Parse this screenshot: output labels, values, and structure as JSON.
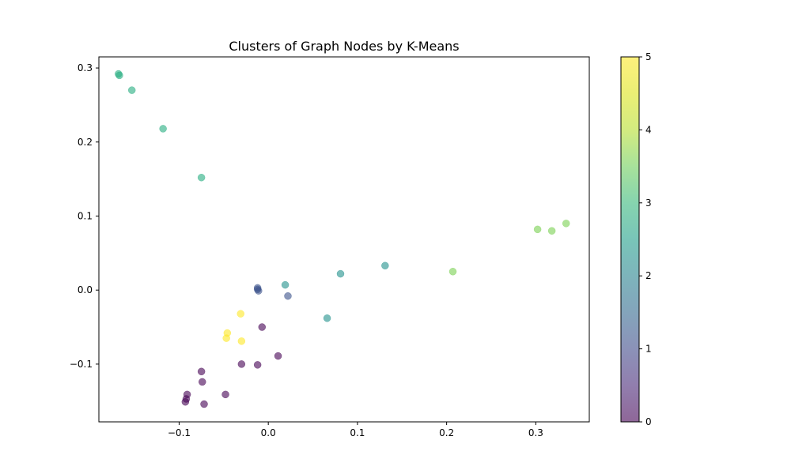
{
  "chart_data": {
    "type": "scatter",
    "title": "Clusters of Graph Nodes by K-Means",
    "xlabel": "",
    "ylabel": "",
    "xlim": [
      -0.19,
      0.36
    ],
    "ylim": [
      -0.178,
      0.315
    ],
    "grid": false,
    "x_ticks": [
      {
        "value": -0.1,
        "label": "−0.1"
      },
      {
        "value": 0.0,
        "label": "0.0"
      },
      {
        "value": 0.1,
        "label": "0.1"
      },
      {
        "value": 0.2,
        "label": "0.2"
      },
      {
        "value": 0.3,
        "label": "0.3"
      }
    ],
    "y_ticks": [
      {
        "value": -0.1,
        "label": "−0.1"
      },
      {
        "value": 0.0,
        "label": "0.0"
      },
      {
        "value": 0.1,
        "label": "0.1"
      },
      {
        "value": 0.2,
        "label": "0.2"
      },
      {
        "value": 0.3,
        "label": "0.3"
      }
    ],
    "colorbar": {
      "min": 0,
      "max": 5,
      "colormap": "viridis",
      "ticks": [
        {
          "value": 0,
          "label": "0"
        },
        {
          "value": 1,
          "label": "1"
        },
        {
          "value": 2,
          "label": "2"
        },
        {
          "value": 3,
          "label": "3"
        },
        {
          "value": 4,
          "label": "4"
        },
        {
          "value": 5,
          "label": "5"
        }
      ]
    },
    "points": [
      {
        "x": -0.168,
        "y": 0.292,
        "cluster": 3
      },
      {
        "x": -0.167,
        "y": 0.29,
        "cluster": 3
      },
      {
        "x": -0.153,
        "y": 0.27,
        "cluster": 3
      },
      {
        "x": -0.118,
        "y": 0.218,
        "cluster": 3
      },
      {
        "x": -0.075,
        "y": 0.152,
        "cluster": 3
      },
      {
        "x": 0.302,
        "y": 0.082,
        "cluster": 4
      },
      {
        "x": 0.318,
        "y": 0.08,
        "cluster": 4
      },
      {
        "x": 0.334,
        "y": 0.09,
        "cluster": 4
      },
      {
        "x": 0.207,
        "y": 0.025,
        "cluster": 4
      },
      {
        "x": 0.131,
        "y": 0.033,
        "cluster": 2
      },
      {
        "x": 0.081,
        "y": 0.022,
        "cluster": 2
      },
      {
        "x": 0.066,
        "y": -0.038,
        "cluster": 2
      },
      {
        "x": 0.019,
        "y": 0.007,
        "cluster": 2
      },
      {
        "x": -0.012,
        "y": 0.003,
        "cluster": 1
      },
      {
        "x": -0.012,
        "y": 0.001,
        "cluster": 1
      },
      {
        "x": -0.011,
        "y": -0.001,
        "cluster": 1
      },
      {
        "x": 0.022,
        "y": -0.008,
        "cluster": 1
      },
      {
        "x": -0.031,
        "y": -0.032,
        "cluster": 5
      },
      {
        "x": -0.046,
        "y": -0.058,
        "cluster": 5
      },
      {
        "x": -0.047,
        "y": -0.065,
        "cluster": 5
      },
      {
        "x": -0.03,
        "y": -0.069,
        "cluster": 5
      },
      {
        "x": -0.007,
        "y": -0.05,
        "cluster": 0
      },
      {
        "x": 0.011,
        "y": -0.089,
        "cluster": 0
      },
      {
        "x": -0.03,
        "y": -0.1,
        "cluster": 0
      },
      {
        "x": -0.012,
        "y": -0.101,
        "cluster": 0
      },
      {
        "x": -0.075,
        "y": -0.11,
        "cluster": 0
      },
      {
        "x": -0.074,
        "y": -0.124,
        "cluster": 0
      },
      {
        "x": -0.048,
        "y": -0.141,
        "cluster": 0
      },
      {
        "x": -0.091,
        "y": -0.141,
        "cluster": 0
      },
      {
        "x": -0.092,
        "y": -0.147,
        "cluster": 0
      },
      {
        "x": -0.093,
        "y": -0.151,
        "cluster": 0
      },
      {
        "x": -0.072,
        "y": -0.154,
        "cluster": 0
      }
    ]
  }
}
